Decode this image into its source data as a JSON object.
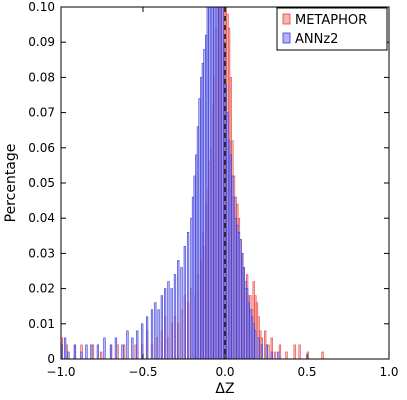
{
  "chart_data": {
    "type": "histogram",
    "title": "",
    "xlabel": "ΔZ",
    "ylabel": "Percentage",
    "xlim": [
      -1.0,
      1.0
    ],
    "ylim": [
      0,
      0.1
    ],
    "xticks": [
      "−1.0",
      "−0.5",
      "0.0",
      "0.5",
      "1.0"
    ],
    "yticks": [
      "0",
      "0.01",
      "0.02",
      "0.03",
      "0.04",
      "0.05",
      "0.06",
      "0.07",
      "0.08",
      "0.09",
      "0.10"
    ],
    "bin_width": 0.01,
    "reference_line_x": 0.0,
    "legend_position": "top-right",
    "series": [
      {
        "name": "METAPHOR",
        "color": "#e8443a",
        "fill": "#f08080",
        "bins": [
          {
            "x": -1.0,
            "y": 0.006
          },
          {
            "x": -0.98,
            "y": 0.0
          },
          {
            "x": -0.97,
            "y": 0.004
          },
          {
            "x": -0.92,
            "y": 0.004
          },
          {
            "x": -0.88,
            "y": 0.004
          },
          {
            "x": -0.84,
            "y": 0.0
          },
          {
            "x": -0.81,
            "y": 0.004
          },
          {
            "x": -0.76,
            "y": 0.002
          },
          {
            "x": -0.7,
            "y": 0.004
          },
          {
            "x": -0.66,
            "y": 0.004
          },
          {
            "x": -0.62,
            "y": 0.004
          },
          {
            "x": -0.58,
            "y": 0.0
          },
          {
            "x": -0.55,
            "y": 0.004
          },
          {
            "x": -0.51,
            "y": 0.004
          },
          {
            "x": -0.48,
            "y": 0.008
          },
          {
            "x": -0.45,
            "y": 0.004
          },
          {
            "x": -0.42,
            "y": 0.006
          },
          {
            "x": -0.39,
            "y": 0.008
          },
          {
            "x": -0.37,
            "y": 0.012
          },
          {
            "x": -0.35,
            "y": 0.006
          },
          {
            "x": -0.33,
            "y": 0.01
          },
          {
            "x": -0.31,
            "y": 0.012
          },
          {
            "x": -0.29,
            "y": 0.01
          },
          {
            "x": -0.27,
            "y": 0.014
          },
          {
            "x": -0.25,
            "y": 0.018
          },
          {
            "x": -0.23,
            "y": 0.016
          },
          {
            "x": -0.21,
            "y": 0.02
          },
          {
            "x": -0.19,
            "y": 0.018
          },
          {
            "x": -0.17,
            "y": 0.024
          },
          {
            "x": -0.15,
            "y": 0.028
          },
          {
            "x": -0.14,
            "y": 0.036
          },
          {
            "x": -0.13,
            "y": 0.032
          },
          {
            "x": -0.12,
            "y": 0.044
          },
          {
            "x": -0.11,
            "y": 0.048
          },
          {
            "x": -0.1,
            "y": 0.056
          },
          {
            "x": -0.09,
            "y": 0.06
          },
          {
            "x": -0.08,
            "y": 0.072
          },
          {
            "x": -0.07,
            "y": 0.08
          },
          {
            "x": -0.06,
            "y": 0.094
          },
          {
            "x": -0.05,
            "y": 0.1
          },
          {
            "x": -0.04,
            "y": 0.1
          },
          {
            "x": -0.03,
            "y": 0.1
          },
          {
            "x": -0.02,
            "y": 0.1
          },
          {
            "x": -0.01,
            "y": 0.1
          },
          {
            "x": 0.0,
            "y": 0.1
          },
          {
            "x": 0.01,
            "y": 0.098
          },
          {
            "x": 0.02,
            "y": 0.094
          },
          {
            "x": 0.03,
            "y": 0.08
          },
          {
            "x": 0.04,
            "y": 0.062
          },
          {
            "x": 0.05,
            "y": 0.052
          },
          {
            "x": 0.06,
            "y": 0.046
          },
          {
            "x": 0.07,
            "y": 0.044
          },
          {
            "x": 0.08,
            "y": 0.04
          },
          {
            "x": 0.09,
            "y": 0.034
          },
          {
            "x": 0.1,
            "y": 0.03
          },
          {
            "x": 0.11,
            "y": 0.026
          },
          {
            "x": 0.12,
            "y": 0.02
          },
          {
            "x": 0.13,
            "y": 0.024
          },
          {
            "x": 0.14,
            "y": 0.018
          },
          {
            "x": 0.15,
            "y": 0.018
          },
          {
            "x": 0.16,
            "y": 0.014
          },
          {
            "x": 0.17,
            "y": 0.022
          },
          {
            "x": 0.18,
            "y": 0.018
          },
          {
            "x": 0.19,
            "y": 0.016
          },
          {
            "x": 0.2,
            "y": 0.012
          },
          {
            "x": 0.21,
            "y": 0.008
          },
          {
            "x": 0.22,
            "y": 0.006
          },
          {
            "x": 0.24,
            "y": 0.008
          },
          {
            "x": 0.26,
            "y": 0.004
          },
          {
            "x": 0.28,
            "y": 0.006
          },
          {
            "x": 0.3,
            "y": 0.002
          },
          {
            "x": 0.33,
            "y": 0.004
          },
          {
            "x": 0.37,
            "y": 0.002
          },
          {
            "x": 0.42,
            "y": 0.004
          },
          {
            "x": 0.45,
            "y": 0.004
          },
          {
            "x": 0.5,
            "y": 0.002
          },
          {
            "x": 0.59,
            "y": 0.002
          }
        ]
      },
      {
        "name": "ANNz2",
        "color": "#3a3ad8",
        "fill": "#8080f0",
        "bins": [
          {
            "x": -1.0,
            "y": 0.004
          },
          {
            "x": -0.98,
            "y": 0.006
          },
          {
            "x": -0.96,
            "y": 0.002
          },
          {
            "x": -0.92,
            "y": 0.004
          },
          {
            "x": -0.88,
            "y": 0.002
          },
          {
            "x": -0.85,
            "y": 0.004
          },
          {
            "x": -0.82,
            "y": 0.004
          },
          {
            "x": -0.78,
            "y": 0.004
          },
          {
            "x": -0.74,
            "y": 0.006
          },
          {
            "x": -0.7,
            "y": 0.004
          },
          {
            "x": -0.67,
            "y": 0.006
          },
          {
            "x": -0.63,
            "y": 0.004
          },
          {
            "x": -0.6,
            "y": 0.008
          },
          {
            "x": -0.57,
            "y": 0.006
          },
          {
            "x": -0.54,
            "y": 0.008
          },
          {
            "x": -0.51,
            "y": 0.01
          },
          {
            "x": -0.48,
            "y": 0.012
          },
          {
            "x": -0.45,
            "y": 0.014
          },
          {
            "x": -0.43,
            "y": 0.016
          },
          {
            "x": -0.41,
            "y": 0.014
          },
          {
            "x": -0.39,
            "y": 0.018
          },
          {
            "x": -0.37,
            "y": 0.02
          },
          {
            "x": -0.35,
            "y": 0.022
          },
          {
            "x": -0.33,
            "y": 0.02
          },
          {
            "x": -0.31,
            "y": 0.024
          },
          {
            "x": -0.29,
            "y": 0.028
          },
          {
            "x": -0.27,
            "y": 0.026
          },
          {
            "x": -0.25,
            "y": 0.032
          },
          {
            "x": -0.23,
            "y": 0.036
          },
          {
            "x": -0.21,
            "y": 0.04
          },
          {
            "x": -0.2,
            "y": 0.046
          },
          {
            "x": -0.19,
            "y": 0.052
          },
          {
            "x": -0.18,
            "y": 0.058
          },
          {
            "x": -0.17,
            "y": 0.066
          },
          {
            "x": -0.16,
            "y": 0.074
          },
          {
            "x": -0.15,
            "y": 0.08
          },
          {
            "x": -0.14,
            "y": 0.084
          },
          {
            "x": -0.13,
            "y": 0.088
          },
          {
            "x": -0.12,
            "y": 0.092
          },
          {
            "x": -0.11,
            "y": 0.1
          },
          {
            "x": -0.1,
            "y": 0.1
          },
          {
            "x": -0.09,
            "y": 0.1
          },
          {
            "x": -0.08,
            "y": 0.1
          },
          {
            "x": -0.07,
            "y": 0.1
          },
          {
            "x": -0.06,
            "y": 0.1
          },
          {
            "x": -0.05,
            "y": 0.1
          },
          {
            "x": -0.04,
            "y": 0.1
          },
          {
            "x": -0.03,
            "y": 0.1
          },
          {
            "x": -0.02,
            "y": 0.1
          },
          {
            "x": -0.01,
            "y": 0.09
          },
          {
            "x": 0.0,
            "y": 0.078
          },
          {
            "x": 0.01,
            "y": 0.07
          },
          {
            "x": 0.02,
            "y": 0.062
          },
          {
            "x": 0.03,
            "y": 0.058
          },
          {
            "x": 0.04,
            "y": 0.052
          },
          {
            "x": 0.05,
            "y": 0.046
          },
          {
            "x": 0.06,
            "y": 0.04
          },
          {
            "x": 0.07,
            "y": 0.038
          },
          {
            "x": 0.08,
            "y": 0.036
          },
          {
            "x": 0.09,
            "y": 0.034
          },
          {
            "x": 0.1,
            "y": 0.03
          },
          {
            "x": 0.11,
            "y": 0.026
          },
          {
            "x": 0.12,
            "y": 0.022
          },
          {
            "x": 0.13,
            "y": 0.02
          },
          {
            "x": 0.14,
            "y": 0.016
          },
          {
            "x": 0.15,
            "y": 0.014
          },
          {
            "x": 0.16,
            "y": 0.012
          },
          {
            "x": 0.17,
            "y": 0.01
          },
          {
            "x": 0.18,
            "y": 0.008
          },
          {
            "x": 0.2,
            "y": 0.006
          },
          {
            "x": 0.22,
            "y": 0.004
          },
          {
            "x": 0.25,
            "y": 0.004
          },
          {
            "x": 0.28,
            "y": 0.002
          },
          {
            "x": 0.32,
            "y": 0.002
          }
        ]
      }
    ]
  }
}
